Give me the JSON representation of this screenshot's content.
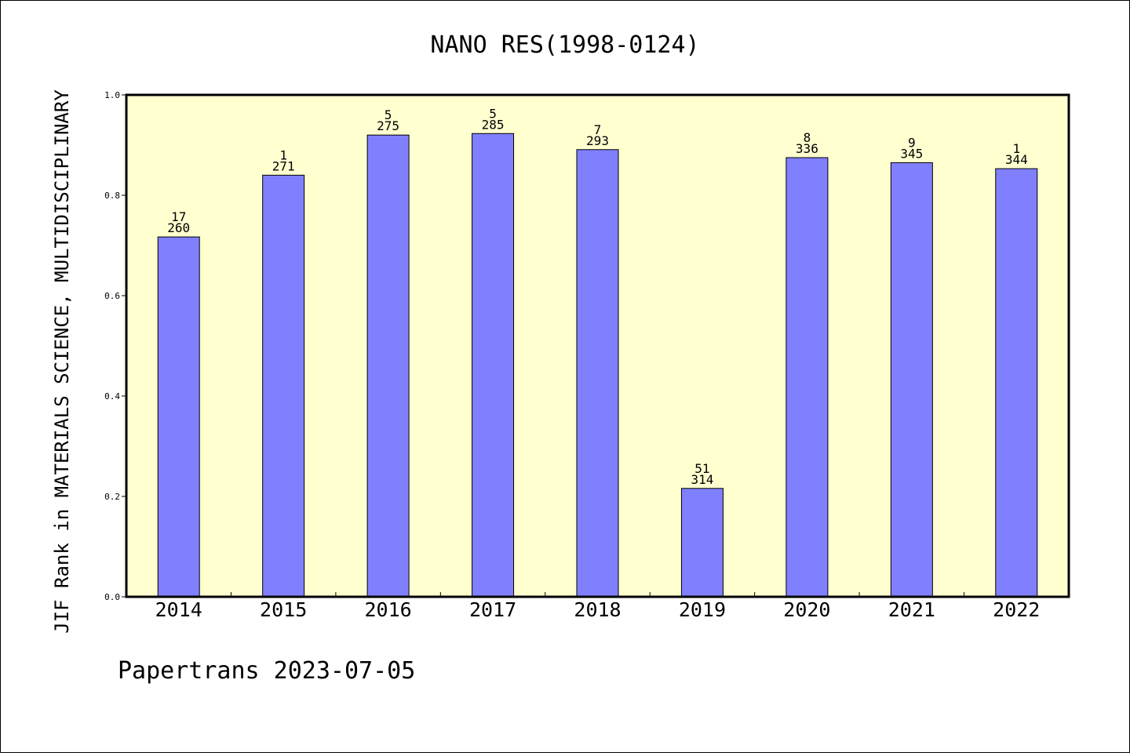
{
  "chart_data": {
    "type": "bar",
    "title": "NANO RES(1998-0124)",
    "xlabel": "",
    "ylabel": "JIF Rank in MATERIALS SCIENCE, MULTIDISCIPLINARY",
    "ylim": [
      0,
      1
    ],
    "yticks": [
      "0.0",
      "0.2",
      "0.4",
      "0.6",
      "0.8",
      "1.0"
    ],
    "grid": false,
    "categories": [
      "2014",
      "2015",
      "2016",
      "2017",
      "2018",
      "2019",
      "2020",
      "2021",
      "2022"
    ],
    "values": [
      0.717,
      0.84,
      0.92,
      0.923,
      0.891,
      0.216,
      0.875,
      0.865,
      0.853
    ],
    "rank": [
      "17",
      "1",
      "5",
      "5",
      "7",
      "51",
      "8",
      "9",
      "1"
    ],
    "total": [
      "260",
      "271",
      "275",
      "285",
      "293",
      "314",
      "336",
      "345",
      "344"
    ],
    "colors": {
      "bar": "#8080ff",
      "plot_background": "#ffffd0",
      "axis": "#000000"
    }
  },
  "footer": "Papertrans 2023-07-05"
}
